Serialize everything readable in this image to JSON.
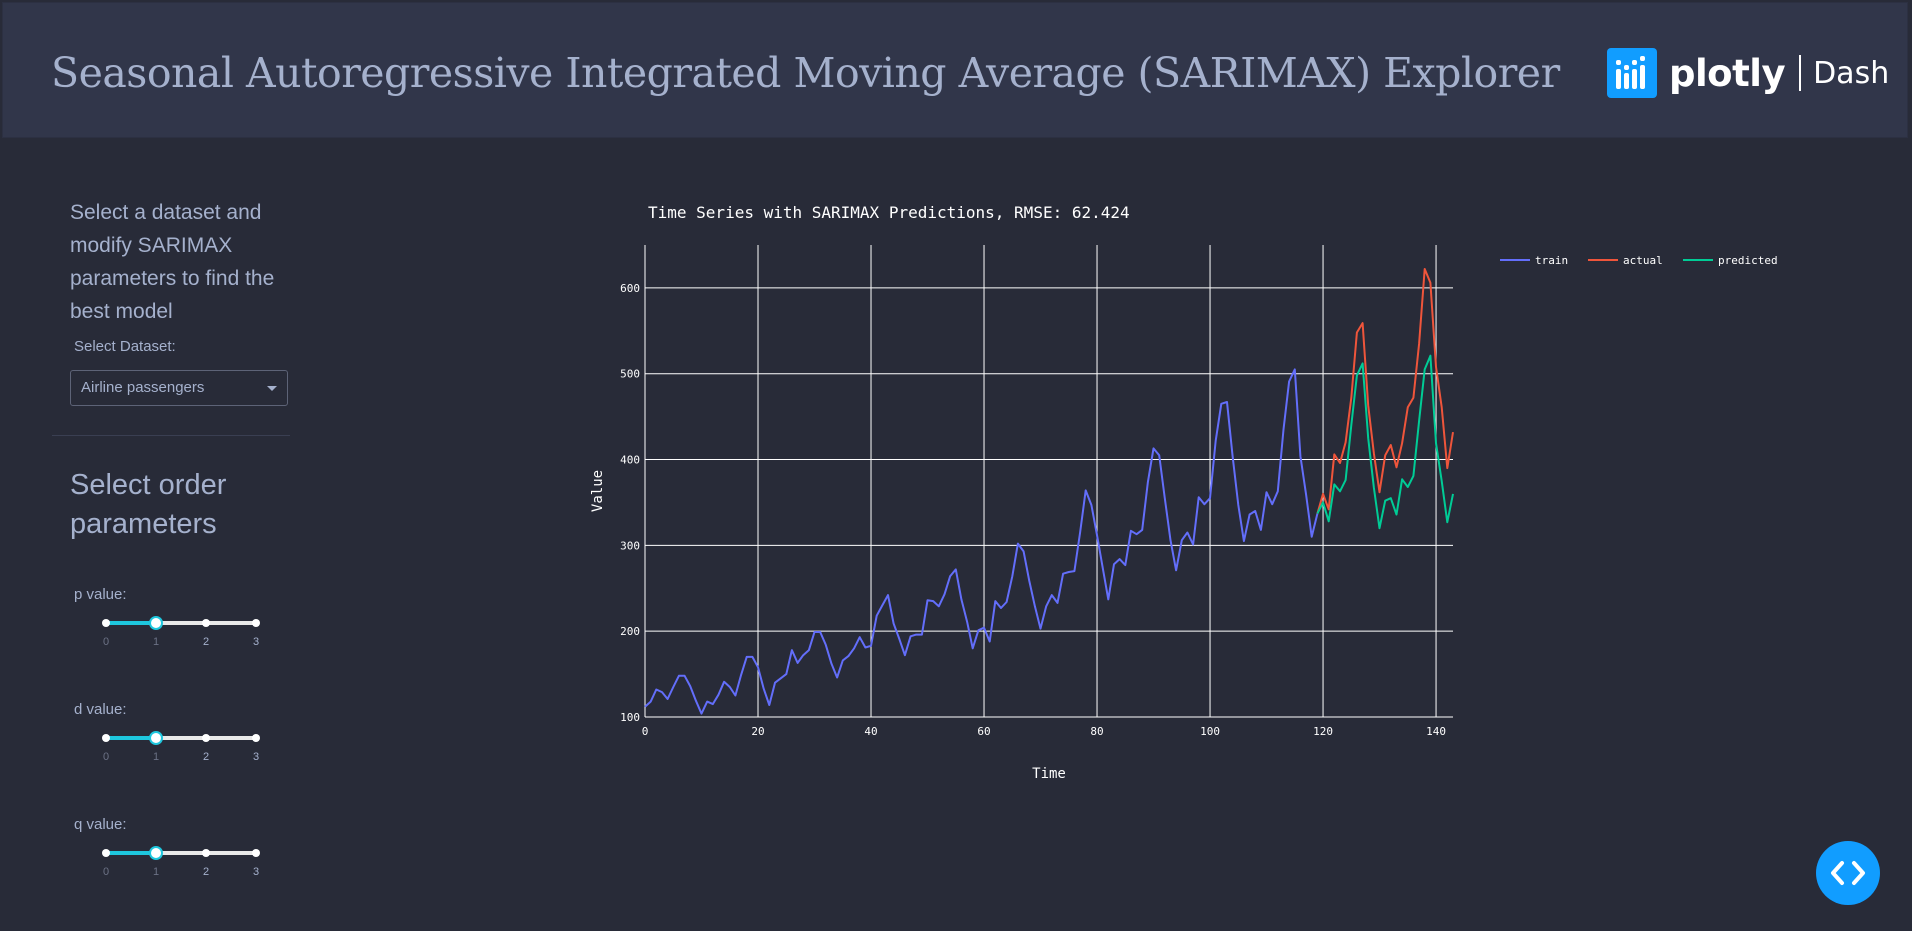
{
  "header": {
    "title": "Seasonal Autoregressive Integrated Moving Average (SARIMAX) Explorer",
    "logo_word": "plotly",
    "logo_suffix": "Dash"
  },
  "sidebar": {
    "intro": "Select a dataset and modify SARIMAX parameters to find the best model",
    "dataset_label": "Select Dataset:",
    "dataset_value": "Airline passengers",
    "order_title": "Select order parameters",
    "sliders": [
      {
        "label": "p value:",
        "value": 1,
        "marks": [
          "0",
          "1",
          "2",
          "3"
        ]
      },
      {
        "label": "d value:",
        "value": 1,
        "marks": [
          "0",
          "1",
          "2",
          "3"
        ]
      },
      {
        "label": "q value:",
        "value": 1,
        "marks": [
          "0",
          "1",
          "2",
          "3"
        ]
      }
    ]
  },
  "colors": {
    "accent": "#1ec7de",
    "train": "#636efa",
    "actual": "#ef553b",
    "predicted": "#00cc96",
    "brand": "#119dff"
  },
  "icons": {
    "fab": "code-icon"
  },
  "chart_data": {
    "type": "line",
    "title": "Time Series with SARIMAX Predictions, RMSE: 62.424",
    "xlabel": "Time",
    "ylabel": "Value",
    "xlim": [
      0,
      143
    ],
    "ylim": [
      100,
      650
    ],
    "xticks": [
      0,
      20,
      40,
      60,
      80,
      100,
      120,
      140
    ],
    "yticks": [
      100,
      200,
      300,
      400,
      500,
      600
    ],
    "grid": true,
    "legend": "top-right-outside",
    "series": [
      {
        "name": "train",
        "start": 0,
        "values": [
          112,
          118,
          132,
          129,
          121,
          135,
          148,
          148,
          136,
          119,
          104,
          118,
          115,
          126,
          141,
          135,
          125,
          149,
          170,
          170,
          158,
          133,
          114,
          140,
          145,
          150,
          178,
          163,
          172,
          178,
          199,
          199,
          184,
          162,
          146,
          166,
          171,
          180,
          193,
          181,
          183,
          218,
          230,
          242,
          209,
          191,
          172,
          194,
          196,
          196,
          236,
          235,
          229,
          243,
          264,
          272,
          237,
          211,
          180,
          201,
          204,
          188,
          235,
          227,
          234,
          264,
          302,
          293,
          259,
          229,
          203,
          229,
          242,
          233,
          267,
          269,
          270,
          315,
          364,
          347,
          312,
          274,
          237,
          278,
          284,
          277,
          317,
          313,
          318,
          374,
          413,
          405,
          355,
          306,
          271,
          306,
          315,
          301,
          356,
          348,
          355,
          422,
          465,
          467,
          404,
          347,
          305,
          336,
          340,
          318,
          362,
          348,
          363,
          435,
          491,
          505,
          404,
          359,
          310,
          337
        ]
      },
      {
        "name": "actual",
        "start": 119,
        "values": [
          337,
          360,
          342,
          406,
          396,
          420,
          472,
          548,
          559,
          463,
          407,
          362,
          405,
          417,
          391,
          419,
          461,
          472,
          535,
          622,
          606,
          508,
          461,
          390,
          432
        ]
      },
      {
        "name": "predicted",
        "start": 119,
        "values": [
          337,
          350,
          328,
          371,
          363,
          376,
          440,
          498,
          512,
          425,
          367,
          320,
          352,
          355,
          336,
          377,
          368,
          381,
          445,
          505,
          521,
          419,
          375,
          327,
          360
        ]
      }
    ]
  }
}
